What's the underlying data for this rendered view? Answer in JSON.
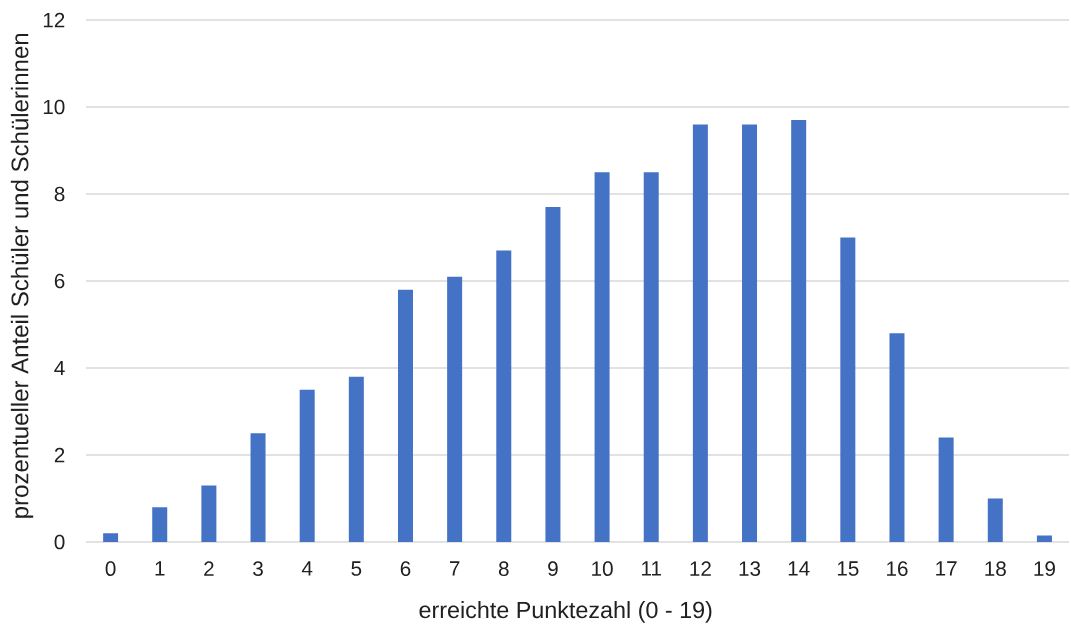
{
  "chart_data": {
    "type": "bar",
    "xlabel": "erreichte Punktezahl (0 - 19)",
    "ylabel": "prozentueller Anteil Schüler und Schülerinnen",
    "categories": [
      "0",
      "1",
      "2",
      "3",
      "4",
      "5",
      "6",
      "7",
      "8",
      "9",
      "10",
      "11",
      "12",
      "13",
      "14",
      "15",
      "16",
      "17",
      "18",
      "19"
    ],
    "values": [
      0.2,
      0.8,
      1.3,
      2.5,
      3.5,
      3.8,
      5.8,
      6.1,
      6.7,
      7.7,
      8.5,
      8.5,
      9.6,
      9.6,
      9.7,
      7.0,
      4.8,
      2.4,
      1.0,
      0.15
    ],
    "color": "#4472c4",
    "ylim": [
      0,
      12
    ],
    "yticks": [
      0,
      2,
      4,
      6,
      8,
      10,
      12
    ],
    "grid": "y"
  }
}
